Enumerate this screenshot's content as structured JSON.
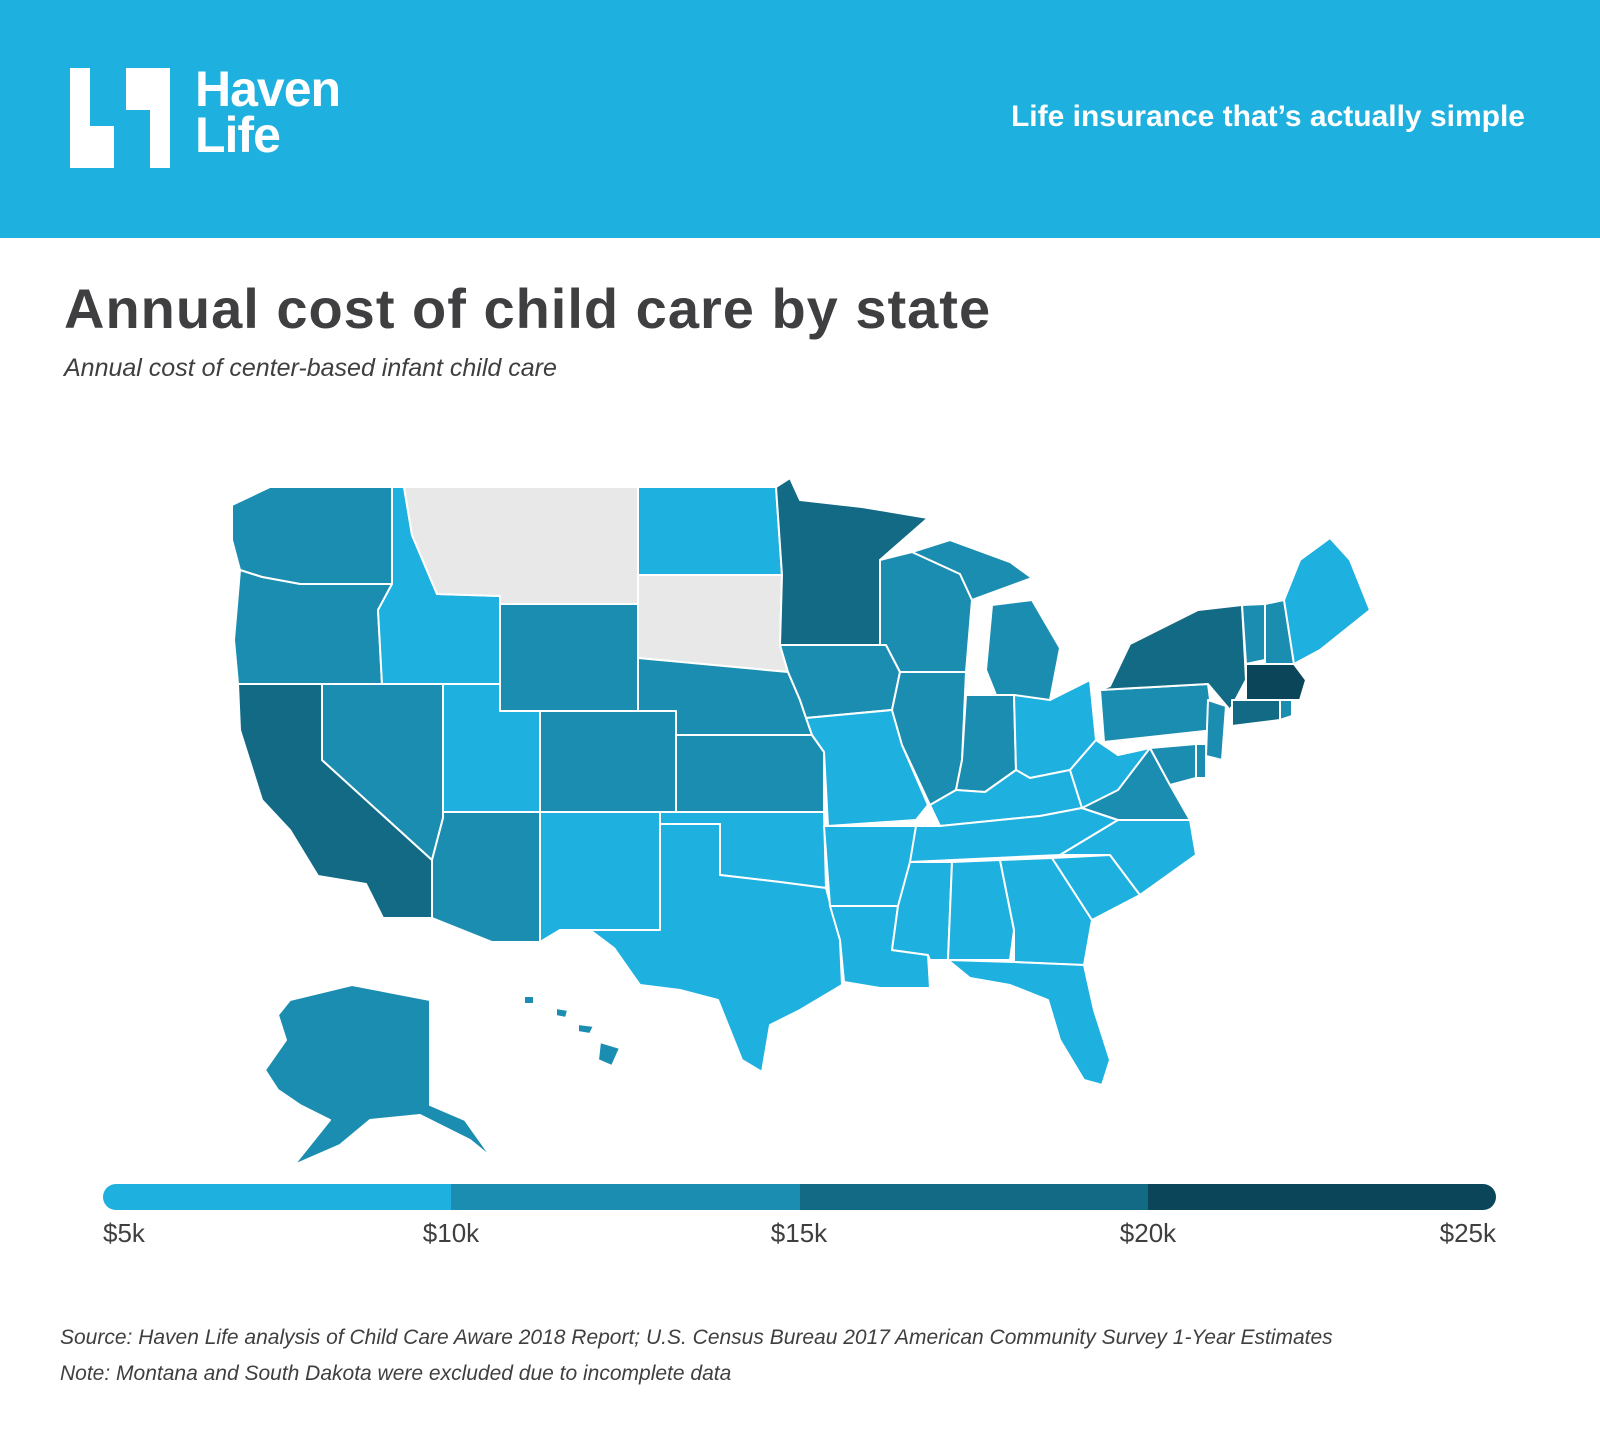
{
  "header": {
    "logo_line1": "Haven",
    "logo_line2": "Life",
    "tagline": "Life insurance that’s actually simple"
  },
  "title": "Annual cost of child care by state",
  "subtitle": "Annual cost of center-based infant child care",
  "colors": {
    "header_bg": "#1eb0de",
    "bin_5_10k": "#1eb0de",
    "bin_10_15k": "#1a8db1",
    "bin_15_20k": "#136a85",
    "bin_20_25k": "#0b4559",
    "excluded": "#e8e8e8"
  },
  "chart_data": {
    "type": "choropleth",
    "title": "Annual cost of child care by state",
    "subtitle": "Annual cost of center-based infant child care",
    "legend": {
      "bins": [
        {
          "min": 5000,
          "max": 10000,
          "color": "#1eb0de"
        },
        {
          "min": 10000,
          "max": 15000,
          "color": "#1a8db1"
        },
        {
          "min": 15000,
          "max": 20000,
          "color": "#136a85"
        },
        {
          "min": 20000,
          "max": 25000,
          "color": "#0b4559"
        }
      ],
      "tick_labels": [
        "$5k",
        "$10k",
        "$15k",
        "$20k",
        "$25k"
      ]
    },
    "states": {
      "Washington": "10-15k",
      "Oregon": "10-15k",
      "California": "15-20k",
      "Nevada": "10-15k",
      "Idaho": "5-10k",
      "Montana": "excluded",
      "Wyoming": "10-15k",
      "Utah": "5-10k",
      "Arizona": "10-15k",
      "Colorado": "10-15k",
      "New Mexico": "5-10k",
      "North Dakota": "5-10k",
      "South Dakota": "excluded",
      "Nebraska": "10-15k",
      "Kansas": "10-15k",
      "Oklahoma": "5-10k",
      "Texas": "5-10k",
      "Minnesota": "15-20k",
      "Iowa": "10-15k",
      "Missouri": "5-10k",
      "Arkansas": "5-10k",
      "Louisiana": "5-10k",
      "Wisconsin": "10-15k",
      "Illinois": "10-15k",
      "Michigan": "10-15k",
      "Indiana": "10-15k",
      "Ohio": "5-10k",
      "Kentucky": "5-10k",
      "Tennessee": "5-10k",
      "Mississippi": "5-10k",
      "Alabama": "5-10k",
      "Georgia": "5-10k",
      "Florida": "5-10k",
      "South Carolina": "5-10k",
      "North Carolina": "5-10k",
      "Virginia": "10-15k",
      "West Virginia": "5-10k",
      "Pennsylvania": "10-15k",
      "New York": "15-20k",
      "Vermont": "10-15k",
      "New Hampshire": "10-15k",
      "Maine": "5-10k",
      "Massachusetts": "20-25k",
      "Connecticut": "15-20k",
      "Rhode Island": "10-15k",
      "New Jersey": "10-15k",
      "Delaware": "10-15k",
      "Maryland": "10-15k",
      "Alaska": "10-15k",
      "Hawaii": "10-15k"
    }
  },
  "footnotes": {
    "source": "Source: Haven Life analysis of Child Care Aware 2018 Report; U.S. Census Bureau 2017 American Community Survey 1-Year Estimates",
    "note": "Note: Montana and South Dakota were excluded due to incomplete data"
  }
}
